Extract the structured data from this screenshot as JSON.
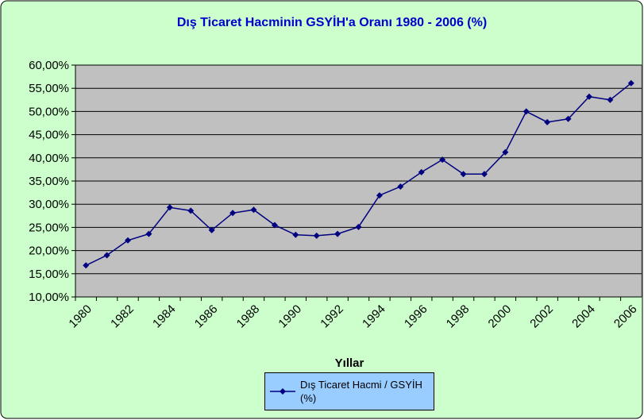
{
  "chart_data": {
    "type": "line",
    "title": "Dış Ticaret Hacminin GSYİH'a Oranı 1980 - 2006 (%)",
    "x_label": "Yıllar",
    "categories": [
      "1980",
      null,
      "1982",
      null,
      "1984",
      null,
      "1986",
      null,
      "1988",
      null,
      "1990",
      null,
      "1992",
      null,
      "1994",
      null,
      "1996",
      null,
      "1998",
      null,
      "2000",
      null,
      "2002",
      null,
      "2004",
      null,
      "2006"
    ],
    "series": [
      {
        "name": "Dış Ticaret Hacmi / GSYİH (%)",
        "color": "#000080",
        "values": [
          16.8,
          19.0,
          22.2,
          23.6,
          29.3,
          28.6,
          24.4,
          28.1,
          28.8,
          25.5,
          23.4,
          23.2,
          23.6,
          25.1,
          31.9,
          33.8,
          36.9,
          39.6,
          36.5,
          36.5,
          41.2,
          50.0,
          47.7,
          48.4,
          53.2,
          52.5,
          56.1
        ]
      }
    ],
    "ylim": [
      10,
      60
    ],
    "yticks": [
      {
        "value": 10,
        "label": "10,00%"
      },
      {
        "value": 15,
        "label": "15,00%"
      },
      {
        "value": 20,
        "label": "20,00%"
      },
      {
        "value": 25,
        "label": "25,00%"
      },
      {
        "value": 30,
        "label": "30,00%"
      },
      {
        "value": 35,
        "label": "35,00%"
      },
      {
        "value": 40,
        "label": "40,00%"
      },
      {
        "value": 45,
        "label": "45,00%"
      },
      {
        "value": 50,
        "label": "50,00%"
      },
      {
        "value": 55,
        "label": "55,00%"
      },
      {
        "value": 60,
        "label": "60,00%"
      }
    ],
    "grid": true
  }
}
